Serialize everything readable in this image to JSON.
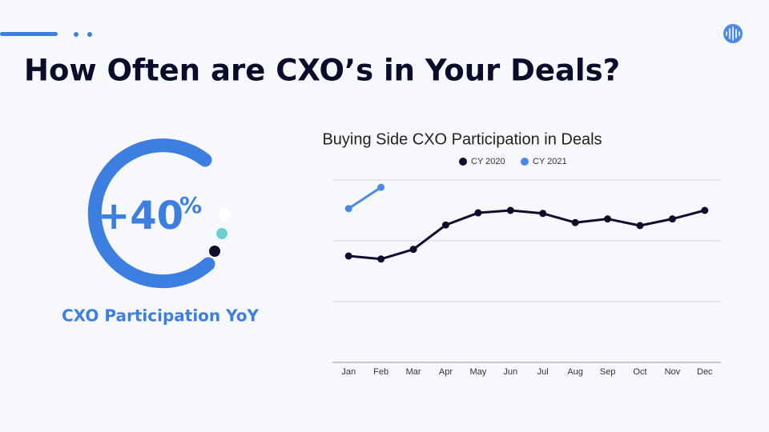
{
  "title": "How Often are CXO’s in Your Deals?",
  "kpi": {
    "value_label": "+40",
    "unit": "%",
    "caption": "CXO Participation YoY"
  },
  "chart_data": {
    "type": "line",
    "title": "Buying Side CXO Participation in Deals",
    "categories": [
      "Jan",
      "Feb",
      "Mar",
      "Apr",
      "May",
      "Jun",
      "Jul",
      "Aug",
      "Sep",
      "Oct",
      "Nov",
      "Dec"
    ],
    "series": [
      {
        "name": "CY 2020",
        "color": "#0e0e2c",
        "values": [
          1.75,
          1.7,
          1.86,
          2.26,
          2.46,
          2.5,
          2.45,
          2.3,
          2.36,
          2.25,
          2.36,
          2.5
        ]
      },
      {
        "name": "CY 2021",
        "color": "#4a8ae6",
        "values": [
          2.53,
          2.88,
          null,
          null,
          null,
          null,
          null,
          null,
          null,
          null,
          null,
          null
        ]
      }
    ],
    "ylim": [
      0,
      3
    ],
    "yticks": [
      1,
      2,
      3
    ],
    "grid": true,
    "legend": "top"
  }
}
